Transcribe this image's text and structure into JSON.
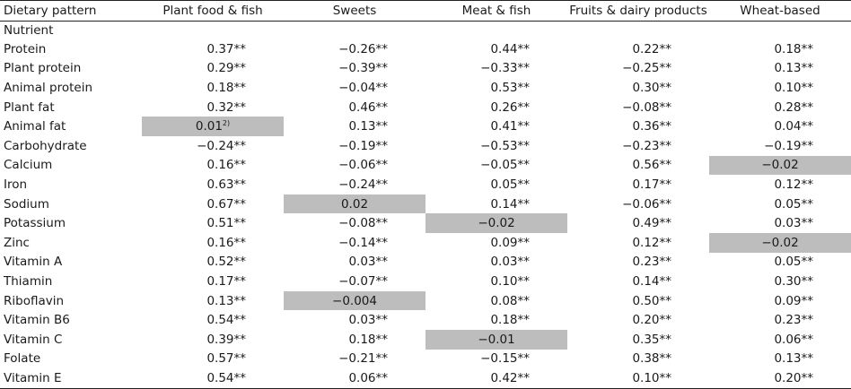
{
  "header": [
    "Dietary pattern",
    "Plant food & fish",
    "Sweets",
    "Meat & fish",
    "Fruits & dairy products",
    "Wheat-based"
  ],
  "section_label": "Nutrient",
  "rows": [
    {
      "label": "Protein",
      "values": [
        "0.37**",
        "−0.26**",
        "0.44**",
        "0.22**",
        "0.18**"
      ]
    },
    {
      "label": "Plant protein",
      "values": [
        "0.29**",
        "−0.39**",
        "−0.33**",
        "−0.25**",
        "0.13**"
      ]
    },
    {
      "label": "Animal protein",
      "values": [
        "0.18**",
        "−0.04**",
        "0.53**",
        "0.30**",
        "0.10**"
      ]
    },
    {
      "label": "Plant fat",
      "values": [
        "0.32**",
        "0.46**",
        "0.26**",
        "−0.08**",
        "0.28**"
      ]
    },
    {
      "label": "Animal fat",
      "values": [
        "0.01",
        "0.13**",
        "0.41**",
        "0.36**",
        "0.04**"
      ]
    },
    {
      "label": "Carbohydrate",
      "values": [
        "−0.24**",
        "−0.19**",
        "−0.53**",
        "−0.23**",
        "−0.19**"
      ]
    },
    {
      "label": "Calcium",
      "values": [
        "0.16**",
        "−0.06**",
        "−0.05**",
        "0.56**",
        "−0.02"
      ]
    },
    {
      "label": "Iron",
      "values": [
        "0.63**",
        "−0.24**",
        "0.05**",
        "0.17**",
        "0.12**"
      ]
    },
    {
      "label": "Sodium",
      "values": [
        "0.67**",
        "0.02",
        "0.14**",
        "−0.06**",
        "0.05**"
      ]
    },
    {
      "label": "Potassium",
      "values": [
        "0.51**",
        "−0.08**",
        "−0.02",
        "0.49**",
        "0.03**"
      ]
    },
    {
      "label": "Zinc",
      "values": [
        "0.16**",
        "−0.14**",
        "0.09**",
        "0.12**",
        "−0.02"
      ]
    },
    {
      "label": "Vitamin A",
      "values": [
        "0.52**",
        "0.03**",
        "0.03**",
        "0.23**",
        "0.05**"
      ]
    },
    {
      "label": "Thiamin",
      "values": [
        "0.17**",
        "−0.07**",
        "0.10**",
        "0.14**",
        "0.30**"
      ]
    },
    {
      "label": "Riboflavin",
      "values": [
        "0.13**",
        "−0.004",
        "0.08**",
        "0.50**",
        "0.09**"
      ]
    },
    {
      "label": "Vitamin B6",
      "values": [
        "0.54**",
        "0.03**",
        "0.18**",
        "0.20**",
        "0.23**"
      ]
    },
    {
      "label": "Vitamin C",
      "values": [
        "0.39**",
        "0.18**",
        "−0.01",
        "0.35**",
        "0.06**"
      ]
    },
    {
      "label": "Folate",
      "values": [
        "0.57**",
        "−0.21**",
        "−0.15**",
        "0.38**",
        "0.13**"
      ]
    },
    {
      "label": "Vitamin E",
      "values": [
        "0.54**",
        "0.06**",
        "0.42**",
        "0.10**",
        "0.20**"
      ]
    }
  ],
  "footnote_marks": {
    "Animal fat|0": "2)"
  },
  "highlight_color": "#bdbdbd"
}
